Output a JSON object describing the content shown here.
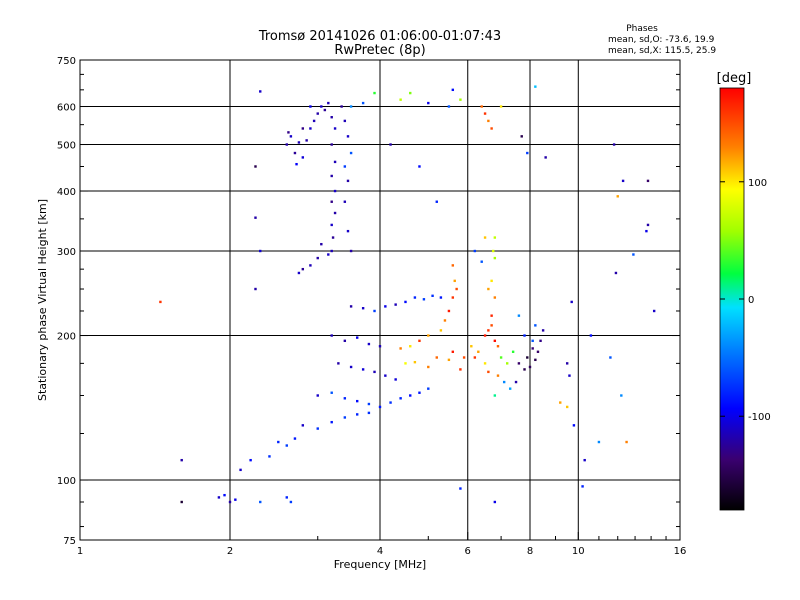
{
  "chart_data": {
    "type": "scatter",
    "title": "Tromsø 20141026 01:06:00-01:07:43",
    "subtitle": "RwPretec (8p)",
    "xlabel": "Frequency [MHz]",
    "ylabel": "Stationary phase Virtual Height [km]",
    "x_scale": "log2",
    "y_scale": "log",
    "xlim": [
      1,
      16
    ],
    "ylim": [
      75,
      750
    ],
    "x_ticks": [
      1,
      2,
      4,
      6,
      8,
      10,
      16
    ],
    "y_ticks": [
      75,
      100,
      200,
      300,
      400,
      500,
      600,
      750
    ],
    "x_grid": [
      2,
      4,
      6,
      8,
      10
    ],
    "y_grid": [
      100,
      200,
      300,
      400,
      500,
      600
    ],
    "grid": true,
    "phase_stats": {
      "title": "Phases",
      "line_o": "mean, sd,O: -73.6, 19.9",
      "line_x": "mean, sd,X: 115.5, 25.9"
    },
    "colorbar": {
      "label": "[deg]",
      "range": [
        -180,
        180
      ],
      "ticks": [
        100,
        0,
        -100
      ],
      "tick_labels": [
        "100",
        "0",
        "-100"
      ]
    },
    "series": [
      {
        "points": [
          [
            2.6,
            500,
            -120
          ],
          [
            2.65,
            520,
            -110
          ],
          [
            2.7,
            480,
            -125
          ],
          [
            2.75,
            505,
            -115
          ],
          [
            2.8,
            470,
            -105
          ],
          [
            2.85,
            510,
            -120
          ],
          [
            2.9,
            540,
            -110
          ],
          [
            2.72,
            455,
            -95
          ],
          [
            2.62,
            530,
            -130
          ],
          [
            2.95,
            560,
            -115
          ],
          [
            3.0,
            580,
            -120
          ],
          [
            3.05,
            600,
            -110
          ],
          [
            3.1,
            590,
            -125
          ],
          [
            3.15,
            610,
            -115
          ],
          [
            2.9,
            600,
            -100
          ],
          [
            2.8,
            540,
            -130
          ],
          [
            3.2,
            570,
            -120
          ],
          [
            3.25,
            540,
            -110
          ],
          [
            3.2,
            500,
            -125
          ],
          [
            3.25,
            460,
            -115
          ],
          [
            3.2,
            430,
            -120
          ],
          [
            3.25,
            400,
            -110
          ],
          [
            3.2,
            380,
            -130
          ],
          [
            3.25,
            360,
            -120
          ],
          [
            3.2,
            340,
            -110
          ],
          [
            3.22,
            320,
            -125
          ],
          [
            3.2,
            300,
            -115
          ],
          [
            3.15,
            295,
            -110
          ],
          [
            3.0,
            290,
            -120
          ],
          [
            2.9,
            280,
            -115
          ],
          [
            2.8,
            275,
            -125
          ],
          [
            2.75,
            270,
            -110
          ],
          [
            3.05,
            310,
            -120
          ],
          [
            3.35,
            600,
            -125
          ],
          [
            3.4,
            560,
            -115
          ],
          [
            3.45,
            520,
            -110
          ],
          [
            3.5,
            480,
            -60
          ],
          [
            3.4,
            450,
            -70
          ],
          [
            3.45,
            420,
            -120
          ],
          [
            3.4,
            380,
            -115
          ],
          [
            3.45,
            330,
            -110
          ],
          [
            3.5,
            300,
            -120
          ],
          [
            3.5,
            600,
            -40
          ],
          [
            3.7,
            610,
            -60
          ],
          [
            3.9,
            640,
            30
          ],
          [
            3.5,
            230,
            -120
          ],
          [
            3.7,
            228,
            -110
          ],
          [
            3.9,
            225,
            -70
          ],
          [
            4.1,
            230,
            -100
          ],
          [
            4.3,
            232,
            -115
          ],
          [
            4.5,
            235,
            -90
          ],
          [
            4.7,
            240,
            -80
          ],
          [
            4.9,
            238,
            -70
          ],
          [
            5.1,
            242,
            -75
          ],
          [
            5.3,
            240,
            -85
          ],
          [
            3.2,
            200,
            -115
          ],
          [
            3.4,
            195,
            -120
          ],
          [
            3.6,
            198,
            -100
          ],
          [
            3.8,
            192,
            -110
          ],
          [
            4.0,
            190,
            -115
          ],
          [
            3.3,
            175,
            -120
          ],
          [
            3.5,
            172,
            -110
          ],
          [
            3.7,
            170,
            -105
          ],
          [
            3.9,
            168,
            -115
          ],
          [
            4.1,
            165,
            -110
          ],
          [
            4.3,
            162,
            -105
          ],
          [
            3.0,
            150,
            -110
          ],
          [
            3.2,
            152,
            -60
          ],
          [
            3.4,
            148,
            -80
          ],
          [
            3.6,
            146,
            -90
          ],
          [
            3.8,
            144,
            -70
          ],
          [
            4.0,
            142,
            -85
          ],
          [
            4.2,
            145,
            -75
          ],
          [
            4.4,
            148,
            -80
          ],
          [
            4.6,
            150,
            -90
          ],
          [
            4.8,
            152,
            -85
          ],
          [
            5.0,
            155,
            -70
          ],
          [
            2.8,
            130,
            -110
          ],
          [
            3.0,
            128,
            -75
          ],
          [
            3.2,
            132,
            -85
          ],
          [
            3.4,
            135,
            -70
          ],
          [
            3.6,
            137,
            -80
          ],
          [
            3.8,
            138,
            -75
          ],
          [
            2.5,
            120,
            -80
          ],
          [
            2.6,
            118,
            -70
          ],
          [
            2.7,
            122,
            -85
          ],
          [
            2.4,
            112,
            -75
          ],
          [
            2.2,
            110,
            -90
          ],
          [
            2.1,
            105,
            -110
          ],
          [
            1.9,
            92,
            -110
          ],
          [
            1.95,
            93,
            -90
          ],
          [
            2.0,
            90,
            -120
          ],
          [
            2.05,
            91,
            -100
          ],
          [
            2.6,
            92,
            -80
          ],
          [
            2.65,
            90,
            -70
          ],
          [
            2.3,
            90,
            -60
          ],
          [
            1.6,
            90,
            -160
          ],
          [
            1.6,
            110,
            -120
          ],
          [
            2.3,
            645,
            -110
          ],
          [
            2.25,
            450,
            -150
          ],
          [
            2.25,
            352,
            -120
          ],
          [
            2.3,
            300,
            -105
          ],
          [
            2.25,
            250,
            -120
          ],
          [
            1.45,
            235,
            160
          ],
          [
            5.6,
            280,
            140
          ],
          [
            5.65,
            260,
            120
          ],
          [
            5.7,
            250,
            150
          ],
          [
            5.6,
            240,
            160
          ],
          [
            5.5,
            225,
            170
          ],
          [
            5.4,
            215,
            130
          ],
          [
            5.3,
            205,
            110
          ],
          [
            5.0,
            200,
            120
          ],
          [
            4.8,
            195,
            160
          ],
          [
            4.6,
            190,
            100
          ],
          [
            4.4,
            188,
            130
          ],
          [
            4.5,
            175,
            90
          ],
          [
            5.2,
            180,
            140
          ],
          [
            5.6,
            185,
            170
          ],
          [
            5.9,
            180,
            150
          ],
          [
            5.5,
            178,
            120
          ],
          [
            5.8,
            170,
            160
          ],
          [
            4.7,
            176,
            110
          ],
          [
            5.0,
            172,
            130
          ],
          [
            6.5,
            200,
            170
          ],
          [
            6.6,
            205,
            160
          ],
          [
            6.7,
            210,
            150
          ],
          [
            6.8,
            195,
            175
          ],
          [
            6.9,
            190,
            140
          ],
          [
            6.3,
            185,
            120
          ],
          [
            6.2,
            180,
            160
          ],
          [
            6.5,
            175,
            100
          ],
          [
            6.6,
            168,
            150
          ],
          [
            6.9,
            165,
            130
          ],
          [
            6.1,
            190,
            110
          ],
          [
            6.7,
            220,
            165
          ],
          [
            6.8,
            240,
            130
          ],
          [
            6.7,
            260,
            100
          ],
          [
            6.75,
            300,
            80
          ],
          [
            6.8,
            290,
            60
          ],
          [
            6.6,
            250,
            120
          ],
          [
            6.5,
            320,
            110
          ],
          [
            6.8,
            320,
            70
          ],
          [
            7.6,
            175,
            -140
          ],
          [
            7.8,
            170,
            -150
          ],
          [
            8.0,
            172,
            -145
          ],
          [
            8.2,
            178,
            -150
          ],
          [
            8.3,
            185,
            -140
          ],
          [
            8.4,
            195,
            -130
          ],
          [
            8.5,
            205,
            -120
          ],
          [
            8.1,
            188,
            -135
          ],
          [
            7.9,
            180,
            -160
          ],
          [
            7.8,
            200,
            -80
          ],
          [
            8.1,
            195,
            -60
          ],
          [
            7.5,
            160,
            -120
          ],
          [
            7.0,
            180,
            40
          ],
          [
            7.2,
            175,
            60
          ],
          [
            7.4,
            185,
            30
          ],
          [
            7.1,
            160,
            -40
          ],
          [
            7.3,
            155,
            -30
          ],
          [
            6.8,
            150,
            10
          ],
          [
            7.6,
            220,
            -40
          ],
          [
            8.2,
            210,
            -60
          ],
          [
            6.4,
            600,
            140
          ],
          [
            6.5,
            580,
            160
          ],
          [
            6.6,
            560,
            130
          ],
          [
            6.7,
            540,
            150
          ],
          [
            7.0,
            600,
            100
          ],
          [
            5.6,
            650,
            -90
          ],
          [
            5.8,
            620,
            60
          ],
          [
            4.4,
            620,
            70
          ],
          [
            4.6,
            640,
            50
          ],
          [
            5.0,
            610,
            -100
          ],
          [
            5.5,
            600,
            -60
          ],
          [
            4.2,
            500,
            -120
          ],
          [
            4.8,
            450,
            -90
          ],
          [
            5.2,
            380,
            -80
          ],
          [
            6.2,
            300,
            -70
          ],
          [
            6.4,
            285,
            -60
          ],
          [
            7.7,
            520,
            -150
          ],
          [
            7.9,
            480,
            -70
          ],
          [
            8.6,
            470,
            -120
          ],
          [
            11.8,
            500,
            -120
          ],
          [
            12.3,
            420,
            -110
          ],
          [
            13.8,
            420,
            -140
          ],
          [
            13.8,
            340,
            -120
          ],
          [
            13.7,
            330,
            -100
          ],
          [
            11.9,
            270,
            -120
          ],
          [
            12.9,
            295,
            -60
          ],
          [
            10.6,
            200,
            -90
          ],
          [
            9.7,
            235,
            -110
          ],
          [
            9.5,
            175,
            -120
          ],
          [
            9.6,
            165,
            -110
          ],
          [
            9.8,
            130,
            -90
          ],
          [
            10.3,
            110,
            -110
          ],
          [
            10.2,
            97,
            -80
          ],
          [
            11.0,
            120,
            -40
          ],
          [
            12.5,
            120,
            130
          ],
          [
            14.2,
            225,
            -110
          ],
          [
            12.2,
            150,
            -40
          ],
          [
            11.6,
            180,
            -60
          ],
          [
            9.2,
            145,
            120
          ],
          [
            6.8,
            90,
            -100
          ],
          [
            5.8,
            96,
            -80
          ],
          [
            9.5,
            142,
            110
          ],
          [
            12.0,
            390,
            120
          ],
          [
            8.2,
            660,
            -20
          ]
        ]
      }
    ]
  }
}
